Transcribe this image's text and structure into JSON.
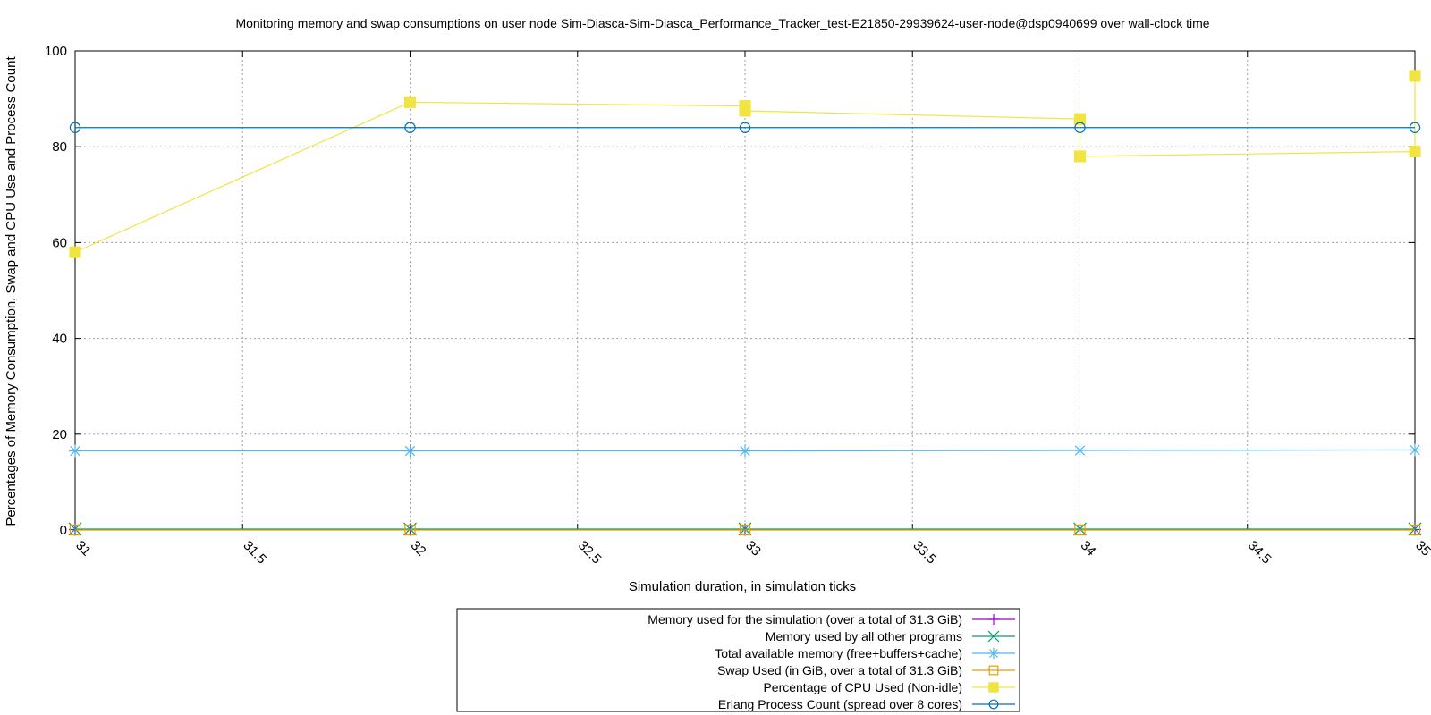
{
  "chart_data": {
    "type": "line",
    "title": "Monitoring memory and swap consumptions on user node Sim-Diasca-Sim-Diasca_Performance_Tracker_test-E21850-29939624-user-node@dsp0940699 over wall-clock time",
    "xlabel": "Simulation duration, in simulation ticks",
    "ylabel": "Percentages of Memory Consumption, Swap and CPU Use and Process Count",
    "xlim": [
      31,
      35
    ],
    "ylim": [
      0,
      100
    ],
    "x_ticks": [
      31,
      31.5,
      32,
      32.5,
      33,
      33.5,
      34,
      34.5,
      35
    ],
    "x_tick_labels": [
      "31",
      "31.5",
      "32",
      "32.5",
      "33",
      "33.5",
      "34",
      "34.5",
      "35"
    ],
    "y_ticks": [
      0,
      20,
      40,
      60,
      80,
      100
    ],
    "y_tick_labels": [
      "0",
      "20",
      "40",
      "60",
      "80",
      "100"
    ],
    "grid": true,
    "legend_position": "bottom-center",
    "series": [
      {
        "name": "Memory used for the simulation (over a total of 31.3 GiB)",
        "color": "#9400d3",
        "marker": "plus",
        "points": [
          [
            31,
            0.1
          ],
          [
            32,
            0.1
          ],
          [
            33,
            0.1
          ],
          [
            34,
            0.1
          ],
          [
            35,
            0.1
          ]
        ]
      },
      {
        "name": "Memory used by all other programs",
        "color": "#009e73",
        "marker": "cross",
        "points": [
          [
            31,
            0.2
          ],
          [
            32,
            0.2
          ],
          [
            33,
            0.2
          ],
          [
            34,
            0.2
          ],
          [
            35,
            0.2
          ]
        ]
      },
      {
        "name": "Total available memory (free+buffers+cache)",
        "color": "#56b4e9",
        "marker": "star",
        "points": [
          [
            31,
            16.5
          ],
          [
            32,
            16.5
          ],
          [
            33,
            16.5
          ],
          [
            34,
            16.6
          ],
          [
            35,
            16.7
          ]
        ]
      },
      {
        "name": "Swap Used (in GiB, over a total of 31.3 GiB)",
        "color": "#e69f00",
        "marker": "square-open",
        "points": [
          [
            31,
            0
          ],
          [
            32,
            0
          ],
          [
            33,
            0
          ],
          [
            34,
            0
          ],
          [
            35,
            0
          ]
        ]
      },
      {
        "name": "Percentage of CPU Used (Non-idle)",
        "color": "#f0e442",
        "marker": "square-filled",
        "points": [
          [
            31,
            58
          ],
          [
            32,
            89.3
          ],
          [
            33,
            88.5
          ],
          [
            33,
            87.5
          ],
          [
            34,
            85.8
          ],
          [
            34,
            78
          ],
          [
            35,
            79
          ],
          [
            35,
            94.8
          ]
        ]
      },
      {
        "name": "Erlang Process Count (spread over 8 cores)",
        "color": "#0072b2",
        "marker": "circle-open",
        "points": [
          [
            31,
            84
          ],
          [
            32,
            84
          ],
          [
            33,
            84
          ],
          [
            34,
            84
          ],
          [
            35,
            84
          ]
        ]
      }
    ]
  }
}
